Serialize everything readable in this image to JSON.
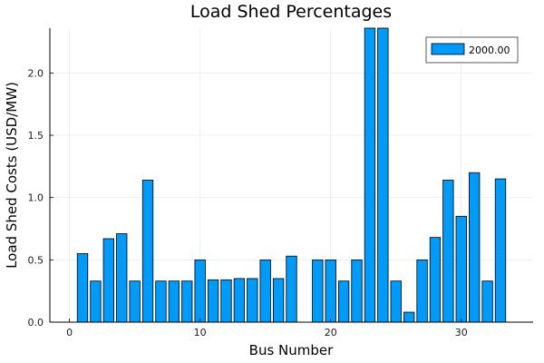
{
  "chart_data": {
    "type": "bar",
    "title": "Load Shed Percentages",
    "xlabel": "Bus Number",
    "ylabel": "Load Shed Costs (USD/MW)",
    "xlim": [
      -1.5,
      35.5
    ],
    "ylim": [
      0,
      2.36
    ],
    "xticks": [
      0,
      10,
      20,
      30
    ],
    "yticks": [
      0.0,
      0.5,
      1.0,
      1.5,
      2.0
    ],
    "ytick_labels": [
      "0.0",
      "0.5",
      "1.0",
      "1.5",
      "2.0"
    ],
    "grid": true,
    "legend_position": "top-right",
    "bar_color": "#009AF9",
    "series": [
      {
        "name": "2000.00",
        "x": [
          1,
          2,
          3,
          4,
          5,
          6,
          7,
          8,
          9,
          10,
          11,
          12,
          13,
          14,
          15,
          16,
          17,
          18,
          19,
          20,
          21,
          22,
          23,
          24,
          25,
          26,
          27,
          28,
          29,
          30,
          31,
          32,
          33
        ],
        "values": [
          0.55,
          0.33,
          0.67,
          0.71,
          0.33,
          1.14,
          0.33,
          0.33,
          0.33,
          0.5,
          0.34,
          0.34,
          0.35,
          0.35,
          0.5,
          0.35,
          0.53,
          0.0,
          0.5,
          0.5,
          0.33,
          0.5,
          2.36,
          2.36,
          0.33,
          0.08,
          0.5,
          0.68,
          1.14,
          0.85,
          1.2,
          0.33,
          1.15
        ]
      }
    ]
  }
}
